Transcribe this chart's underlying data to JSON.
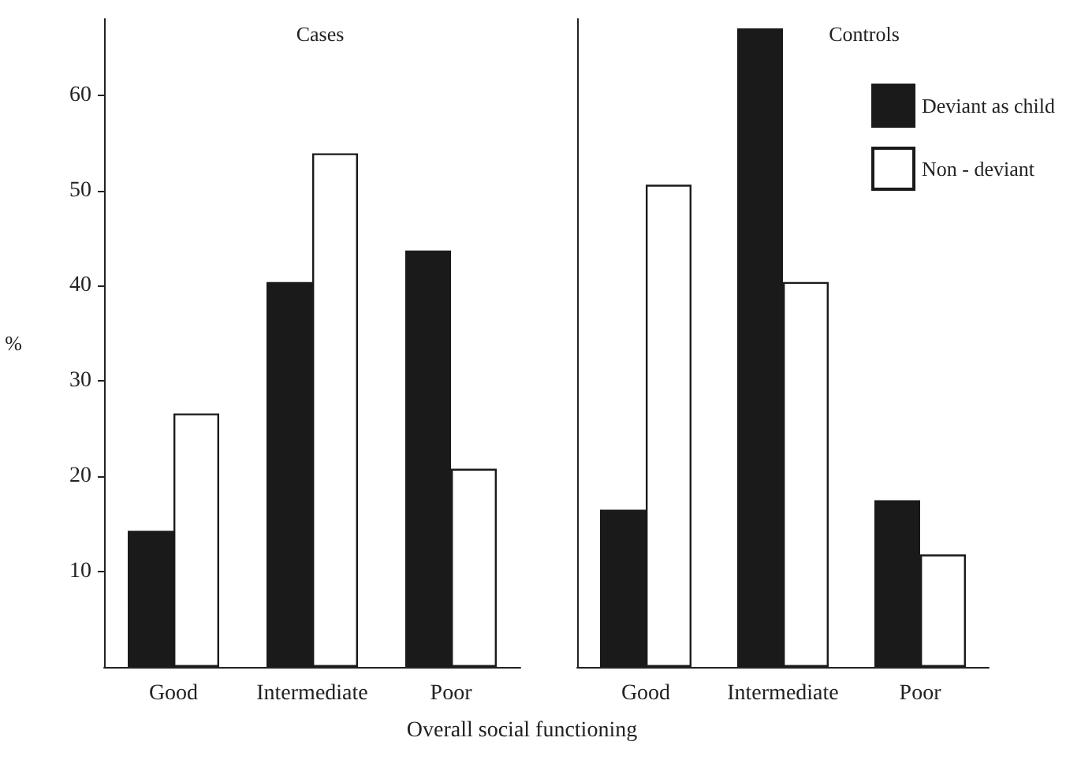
{
  "chart_data": [
    {
      "type": "bar",
      "title": "Cases",
      "xlabel": "Overall social functioning",
      "ylabel": "%",
      "categories": [
        "Good",
        "Intermediate",
        "Poor"
      ],
      "series": [
        {
          "color": "#1a1a1a",
          "values": [
            14.3,
            40.4,
            43.7
          ]
        },
        {
          "color": "#ffffff",
          "values": [
            26.6,
            53.9,
            20.8
          ]
        }
      ],
      "ylim": [
        0,
        68
      ],
      "yticks": [
        10,
        20,
        30,
        40,
        50,
        60
      ],
      "grid": false,
      "legend": false
    },
    {
      "type": "bar",
      "title": "Controls",
      "categories": [
        "Good",
        "Intermediate",
        "Poor"
      ],
      "series": [
        {
          "name": "Deviant as child",
          "color": "#1a1a1a",
          "values": [
            16.5,
            67.0,
            17.5
          ]
        },
        {
          "name": "Non - deviant",
          "color": "#ffffff",
          "values": [
            50.6,
            40.4,
            11.8
          ]
        }
      ],
      "ylim": [
        0,
        68
      ],
      "yticks": [
        10,
        20,
        30,
        40,
        50,
        60
      ],
      "grid": false,
      "legend": "top right",
      "tick_labels": "x"
    }
  ]
}
